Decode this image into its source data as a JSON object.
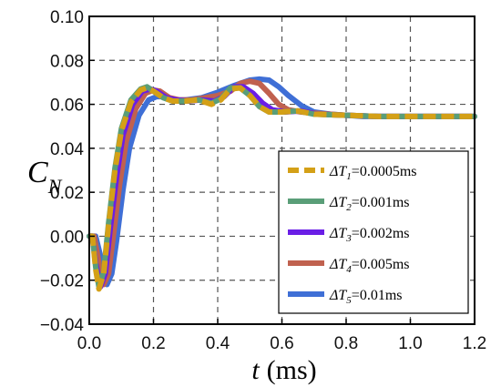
{
  "chart_data": {
    "type": "line",
    "xlabel": "t (ms)",
    "xlabel_var": "t",
    "xlabel_unit": "(ms)",
    "ylabel": "C_N",
    "ylabel_main": "C",
    "ylabel_sub": "N",
    "xlim": [
      0.0,
      1.2
    ],
    "ylim": [
      -0.04,
      0.1
    ],
    "x_ticks": [
      "0.0",
      "0.2",
      "0.4",
      "0.6",
      "0.8",
      "1.0",
      "1.2"
    ],
    "y_ticks": [
      "−0.04",
      "−0.02",
      "0.00",
      "0.02",
      "0.04",
      "0.06",
      "0.08",
      "0.10"
    ],
    "x_tick_values": [
      0.0,
      0.2,
      0.4,
      0.6,
      0.8,
      1.0,
      1.2
    ],
    "y_tick_values": [
      -0.04,
      -0.02,
      0.0,
      0.02,
      0.04,
      0.06,
      0.08,
      0.1
    ],
    "grid": true,
    "legend_position": "right",
    "series": [
      {
        "name": "ΔT1=0.0005ms",
        "label_prefix": "ΔT",
        "label_sub": "1",
        "label_suffix": "=0.0005ms",
        "color": "#d4a017",
        "dashed": true,
        "x": [
          0.0,
          0.01,
          0.02,
          0.03,
          0.045,
          0.06,
          0.08,
          0.1,
          0.13,
          0.16,
          0.18,
          0.2,
          0.23,
          0.26,
          0.3,
          0.34,
          0.38,
          0.41,
          0.44,
          0.47,
          0.5,
          0.53,
          0.56,
          0.6,
          0.65,
          0.7,
          0.8,
          0.9,
          1.0,
          1.1,
          1.2
        ],
        "y": [
          0.0,
          0.0,
          -0.015,
          -0.024,
          -0.017,
          0.005,
          0.03,
          0.048,
          0.061,
          0.0665,
          0.0675,
          0.066,
          0.063,
          0.0615,
          0.0615,
          0.062,
          0.06,
          0.062,
          0.067,
          0.0675,
          0.064,
          0.059,
          0.0565,
          0.0565,
          0.057,
          0.0555,
          0.055,
          0.0545,
          0.0545,
          0.0545,
          0.0545
        ]
      },
      {
        "name": "ΔT2=0.001ms",
        "label_prefix": "ΔT",
        "label_sub": "2",
        "label_suffix": "=0.001ms",
        "color": "#5a9e78",
        "dashed": false,
        "x": [
          0.0,
          0.01,
          0.02,
          0.03,
          0.045,
          0.06,
          0.08,
          0.1,
          0.13,
          0.16,
          0.18,
          0.2,
          0.23,
          0.26,
          0.3,
          0.34,
          0.38,
          0.41,
          0.44,
          0.47,
          0.5,
          0.53,
          0.56,
          0.6,
          0.65,
          0.7,
          0.8,
          0.9,
          1.0,
          1.1,
          1.2
        ],
        "y": [
          0.0,
          0.0,
          -0.014,
          -0.023,
          -0.016,
          0.006,
          0.031,
          0.049,
          0.062,
          0.067,
          0.068,
          0.066,
          0.063,
          0.0615,
          0.0615,
          0.062,
          0.0605,
          0.0625,
          0.0675,
          0.0675,
          0.064,
          0.059,
          0.0565,
          0.0565,
          0.057,
          0.0555,
          0.055,
          0.0545,
          0.0545,
          0.0545,
          0.0545
        ]
      },
      {
        "name": "ΔT3=0.002ms",
        "label_prefix": "ΔT",
        "label_sub": "3",
        "label_suffix": "=0.002ms",
        "color": "#6a1ee6",
        "dashed": false,
        "x": [
          0.0,
          0.01,
          0.02,
          0.035,
          0.05,
          0.065,
          0.085,
          0.105,
          0.135,
          0.165,
          0.19,
          0.21,
          0.24,
          0.27,
          0.31,
          0.35,
          0.39,
          0.42,
          0.45,
          0.48,
          0.51,
          0.54,
          0.57,
          0.61,
          0.66,
          0.71,
          0.8,
          0.9,
          1.0,
          1.1,
          1.2
        ],
        "y": [
          0.0,
          0.0,
          -0.012,
          -0.023,
          -0.017,
          0.003,
          0.027,
          0.046,
          0.06,
          0.066,
          0.067,
          0.066,
          0.063,
          0.062,
          0.0615,
          0.062,
          0.0615,
          0.0635,
          0.068,
          0.068,
          0.065,
          0.0605,
          0.0575,
          0.0565,
          0.057,
          0.0555,
          0.055,
          0.0545,
          0.0545,
          0.0545,
          0.0545
        ]
      },
      {
        "name": "ΔT4=0.005ms",
        "label_prefix": "ΔT",
        "label_sub": "4",
        "label_suffix": "=0.005ms",
        "color": "#c0614f",
        "dashed": false,
        "x": [
          0.0,
          0.015,
          0.03,
          0.045,
          0.06,
          0.075,
          0.095,
          0.115,
          0.145,
          0.175,
          0.2,
          0.22,
          0.25,
          0.28,
          0.32,
          0.36,
          0.4,
          0.44,
          0.47,
          0.5,
          0.53,
          0.56,
          0.59,
          0.62,
          0.66,
          0.7,
          0.8,
          0.9,
          1.0,
          1.1,
          1.2
        ],
        "y": [
          0.0,
          0.0,
          -0.012,
          -0.022,
          -0.017,
          0.0,
          0.024,
          0.043,
          0.058,
          0.065,
          0.0665,
          0.066,
          0.063,
          0.062,
          0.062,
          0.063,
          0.064,
          0.066,
          0.0695,
          0.0705,
          0.0695,
          0.065,
          0.06,
          0.0575,
          0.0565,
          0.056,
          0.055,
          0.0545,
          0.0545,
          0.0545,
          0.0545
        ]
      },
      {
        "name": "ΔT5=0.01ms",
        "label_prefix": "ΔT",
        "label_sub": "5",
        "label_suffix": "=0.01ms",
        "color": "#3f6fd6",
        "dashed": false,
        "x": [
          0.0,
          0.02,
          0.04,
          0.055,
          0.07,
          0.085,
          0.105,
          0.125,
          0.155,
          0.185,
          0.21,
          0.23,
          0.26,
          0.3,
          0.35,
          0.4,
          0.45,
          0.5,
          0.53,
          0.56,
          0.59,
          0.62,
          0.66,
          0.7,
          0.75,
          0.8,
          0.85,
          0.9,
          1.0,
          1.1,
          1.2
        ],
        "y": [
          0.0,
          0.0,
          -0.012,
          -0.022,
          -0.017,
          -0.002,
          0.021,
          0.04,
          0.055,
          0.062,
          0.0635,
          0.0635,
          0.062,
          0.062,
          0.063,
          0.0655,
          0.0685,
          0.071,
          0.0715,
          0.071,
          0.068,
          0.064,
          0.0595,
          0.0565,
          0.0555,
          0.055,
          0.0545,
          0.0545,
          0.0545,
          0.0545,
          0.0545
        ]
      }
    ]
  }
}
